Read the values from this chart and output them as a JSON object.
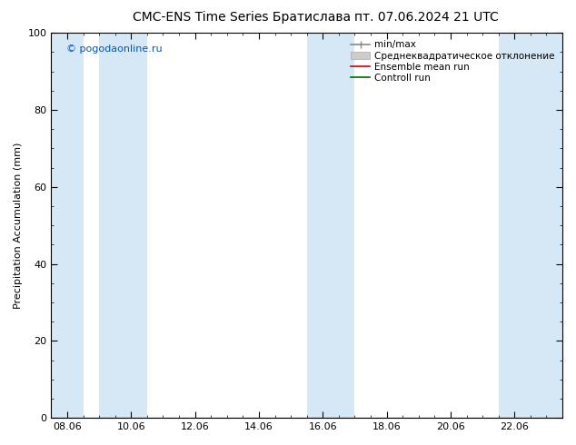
{
  "title_left": "CMC-ENS Time Series Братислава",
  "title_right": "пт. 07.06.2024 21 UTC",
  "ylabel": "Precipitation Accumulation (mm)",
  "watermark": "© pogodaonline.ru",
  "ylim": [
    0,
    100
  ],
  "yticks": [
    0,
    20,
    40,
    60,
    80,
    100
  ],
  "xtick_labels": [
    "08.06",
    "10.06",
    "12.06",
    "14.06",
    "16.06",
    "18.06",
    "20.06",
    "22.06"
  ],
  "xtick_positions": [
    0,
    2,
    4,
    6,
    8,
    10,
    12,
    14
  ],
  "xmin": -0.5,
  "xmax": 15.5,
  "shaded_bands": [
    [
      -0.5,
      0.5
    ],
    [
      1.0,
      2.5
    ],
    [
      7.5,
      9.0
    ],
    [
      13.5,
      15.5
    ]
  ],
  "band_color": "#d6e8f5",
  "background_color": "#ffffff",
  "plot_bg_color": "#ffffff",
  "legend_labels": [
    "min/max",
    "Среднеквадратическое отклонение",
    "Ensemble mean run",
    "Controll run"
  ],
  "legend_colors": [
    "#888888",
    "#bbbbbb",
    "#cc0000",
    "#006600"
  ],
  "title_fontsize": 10,
  "tick_fontsize": 8,
  "ylabel_fontsize": 8,
  "watermark_color": "#0055cc",
  "watermark_fontsize": 8,
  "legend_fontsize": 7.5
}
